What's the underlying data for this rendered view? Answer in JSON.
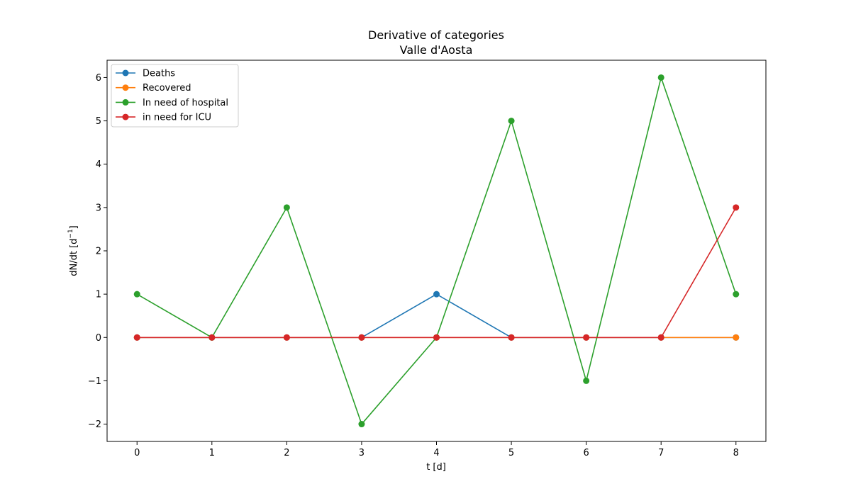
{
  "chart_data": {
    "type": "line",
    "title": "Derivative of categories",
    "subtitle": "Valle d'Aosta",
    "xlabel": "t [d]",
    "ylabel": "dN/dt [d",
    "ylabel_superscript": "−1",
    "ylabel_suffix": "]",
    "x": [
      0,
      1,
      2,
      3,
      4,
      5,
      6,
      7,
      8
    ],
    "xlim": [
      -0.4,
      8.4
    ],
    "ylim": [
      -2.4,
      6.4
    ],
    "xticks": [
      0,
      1,
      2,
      3,
      4,
      5,
      6,
      7,
      8
    ],
    "xtick_labels": [
      "0",
      "1",
      "2",
      "3",
      "4",
      "5",
      "6",
      "7",
      "8"
    ],
    "yticks": [
      -2,
      -1,
      0,
      1,
      2,
      3,
      4,
      5,
      6
    ],
    "ytick_labels": [
      "−2",
      "−1",
      "0",
      "1",
      "2",
      "3",
      "4",
      "5",
      "6"
    ],
    "grid": false,
    "legend_position": "upper-left",
    "series": [
      {
        "name": "Deaths",
        "color": "#1f77b4",
        "values": [
          0,
          0,
          0,
          0,
          1,
          0,
          0,
          0,
          0
        ]
      },
      {
        "name": "Recovered",
        "color": "#ff7f0e",
        "values": [
          0,
          0,
          0,
          0,
          0,
          0,
          0,
          0,
          0
        ]
      },
      {
        "name": "In need of hospital",
        "color": "#2ca02c",
        "values": [
          1,
          0,
          3,
          -2,
          0,
          5,
          -1,
          6,
          1
        ]
      },
      {
        "name": "in need for ICU",
        "color": "#d62728",
        "values": [
          0,
          0,
          0,
          0,
          0,
          0,
          0,
          0,
          3
        ]
      }
    ]
  }
}
